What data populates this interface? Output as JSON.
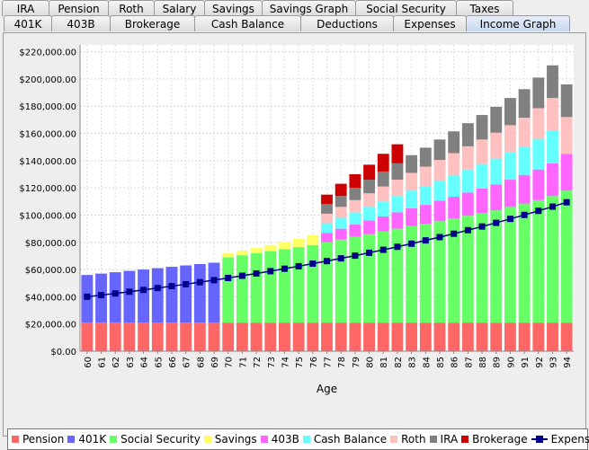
{
  "tabs_row1": [
    "IRA",
    "Pension",
    "Roth",
    "Salary",
    "Savings",
    "Savings Graph",
    "Social Security",
    "Taxes"
  ],
  "tabs_row2": [
    "401K",
    "403B",
    "Brokerage",
    "Cash Balance",
    "Deductions",
    "Expenses",
    "Income Graph"
  ],
  "active_tab": "Income Graph",
  "chart_data": {
    "type": "bar",
    "stacked": true,
    "xlabel": "Age",
    "ylim": [
      0,
      225000
    ],
    "yticks": [
      0,
      20000,
      40000,
      60000,
      80000,
      100000,
      120000,
      140000,
      160000,
      180000,
      200000,
      220000
    ],
    "ytick_labels": [
      "$0.00",
      "$20,000.00",
      "$40,000.00",
      "$60,000.00",
      "$80,000.00",
      "$100,000.00",
      "$120,000.00",
      "$140,000.00",
      "$160,000.00",
      "$180,000.00",
      "$200,000.00",
      "$220,000.00"
    ],
    "categories": [
      "60",
      "61",
      "62",
      "63",
      "64",
      "65",
      "66",
      "67",
      "68",
      "69",
      "70",
      "71",
      "72",
      "73",
      "74",
      "75",
      "76",
      "77",
      "78",
      "79",
      "80",
      "81",
      "82",
      "83",
      "84",
      "85",
      "86",
      "87",
      "88",
      "89",
      "90",
      "91",
      "92",
      "93",
      "94"
    ],
    "grid": true,
    "legend_position": "bottom",
    "series": [
      {
        "name": "Pension",
        "color": "#ff6666",
        "values": [
          21000,
          21000,
          21000,
          21000,
          21000,
          21000,
          21000,
          21000,
          21000,
          21000,
          21000,
          21000,
          21000,
          21000,
          21000,
          21000,
          21000,
          21000,
          21000,
          21000,
          21000,
          21000,
          21000,
          21000,
          21000,
          21000,
          21000,
          21000,
          21000,
          21000,
          21000,
          21000,
          21000,
          21000,
          21000
        ]
      },
      {
        "name": "401K",
        "color": "#6666ff",
        "values": [
          35000,
          36000,
          37000,
          38000,
          39000,
          40000,
          41000,
          42000,
          43000,
          44000,
          0,
          0,
          0,
          0,
          0,
          0,
          0,
          0,
          0,
          0,
          0,
          0,
          0,
          0,
          0,
          0,
          0,
          0,
          0,
          0,
          0,
          0,
          0,
          0,
          0
        ]
      },
      {
        "name": "Social Security",
        "color": "#66ff66",
        "values": [
          0,
          0,
          0,
          0,
          0,
          0,
          0,
          0,
          0,
          0,
          48000,
          49500,
          51000,
          52500,
          54000,
          55500,
          57000,
          59000,
          61000,
          63000,
          65000,
          67000,
          69000,
          71000,
          72500,
          74500,
          76500,
          78500,
          80500,
          82500,
          85000,
          87500,
          90000,
          93000,
          97000
        ]
      },
      {
        "name": "Savings",
        "color": "#ffff66",
        "values": [
          0,
          0,
          0,
          0,
          0,
          0,
          0,
          0,
          0,
          0,
          3000,
          3500,
          4000,
          4500,
          5000,
          6000,
          7500,
          0,
          0,
          0,
          0,
          0,
          0,
          0,
          0,
          0,
          0,
          0,
          0,
          0,
          0,
          0,
          0,
          0,
          0
        ]
      },
      {
        "name": "403B",
        "color": "#ff66ff",
        "values": [
          0,
          0,
          0,
          0,
          0,
          0,
          0,
          0,
          0,
          0,
          0,
          0,
          0,
          0,
          0,
          0,
          0,
          7000,
          8000,
          9000,
          10000,
          11000,
          12000,
          13000,
          14000,
          15000,
          16000,
          17000,
          18000,
          19000,
          20000,
          21000,
          22500,
          24000,
          27000
        ]
      },
      {
        "name": "Cash Balance",
        "color": "#66ffff",
        "values": [
          0,
          0,
          0,
          0,
          0,
          0,
          0,
          0,
          0,
          0,
          0,
          0,
          0,
          0,
          0,
          0,
          0,
          7000,
          8000,
          9000,
          10000,
          11000,
          12000,
          13000,
          14000,
          15000,
          16000,
          17000,
          18000,
          19000,
          20000,
          21000,
          22500,
          24000,
          0
        ]
      },
      {
        "name": "Roth",
        "color": "#ffc0c0",
        "values": [
          0,
          0,
          0,
          0,
          0,
          0,
          0,
          0,
          0,
          0,
          0,
          0,
          0,
          0,
          0,
          0,
          0,
          7000,
          8000,
          9000,
          10000,
          11000,
          12000,
          13000,
          14000,
          15000,
          16000,
          17000,
          18000,
          19000,
          20000,
          21000,
          22500,
          24000,
          27000
        ]
      },
      {
        "name": "IRA",
        "color": "#808080",
        "values": [
          0,
          0,
          0,
          0,
          0,
          0,
          0,
          0,
          0,
          0,
          0,
          0,
          0,
          0,
          0,
          0,
          0,
          7000,
          8000,
          9000,
          10000,
          11000,
          12000,
          13000,
          14000,
          15000,
          16000,
          17000,
          18000,
          19000,
          20000,
          21000,
          22500,
          24000,
          24000
        ]
      },
      {
        "name": "Brokerage",
        "color": "#cc0000",
        "values": [
          0,
          0,
          0,
          0,
          0,
          0,
          0,
          0,
          0,
          0,
          0,
          0,
          0,
          0,
          0,
          0,
          0,
          7000,
          9000,
          10000,
          11000,
          13000,
          14000,
          0,
          0,
          0,
          0,
          0,
          0,
          0,
          0,
          0,
          0,
          0,
          0
        ]
      }
    ],
    "line_series": [
      {
        "name": "Expenses",
        "color": "#00008b",
        "values": [
          40000,
          41200,
          42400,
          43700,
          45000,
          46400,
          47800,
          49200,
          50700,
          52200,
          53800,
          55400,
          57100,
          58800,
          60600,
          62400,
          64300,
          66200,
          68200,
          70200,
          72300,
          74500,
          76700,
          79000,
          81400,
          83800,
          86300,
          88900,
          91600,
          94300,
          97200,
          100100,
          103100,
          106200,
          109400
        ]
      }
    ]
  }
}
